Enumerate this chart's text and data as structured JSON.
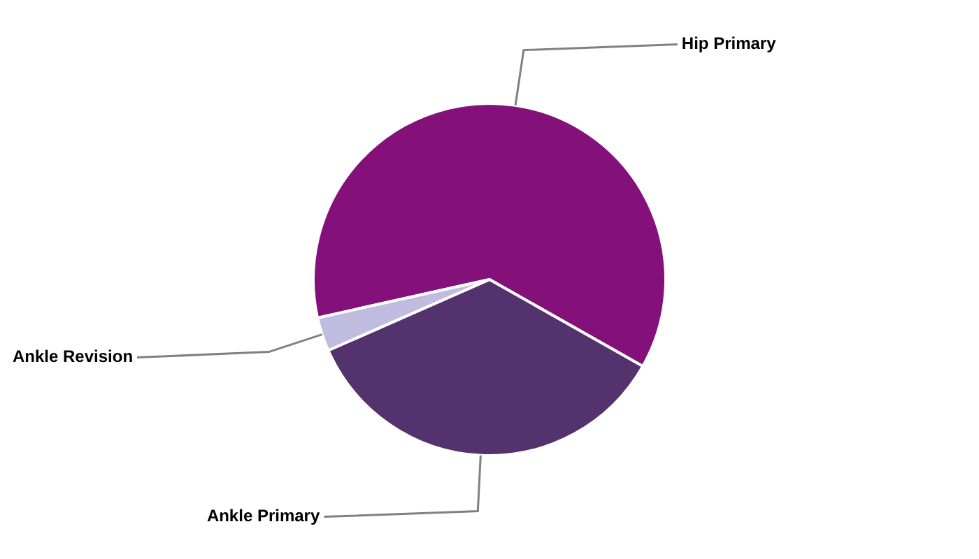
{
  "chart_data": {
    "type": "pie",
    "categories": [
      "Hip Primary",
      "Ankle Primary",
      "Ankle Revision"
    ],
    "values": [
      61.7,
      35.2,
      3.1
    ],
    "colors": [
      "#84107a",
      "#53326e",
      "#c0bcdf"
    ],
    "legend": false
  }
}
